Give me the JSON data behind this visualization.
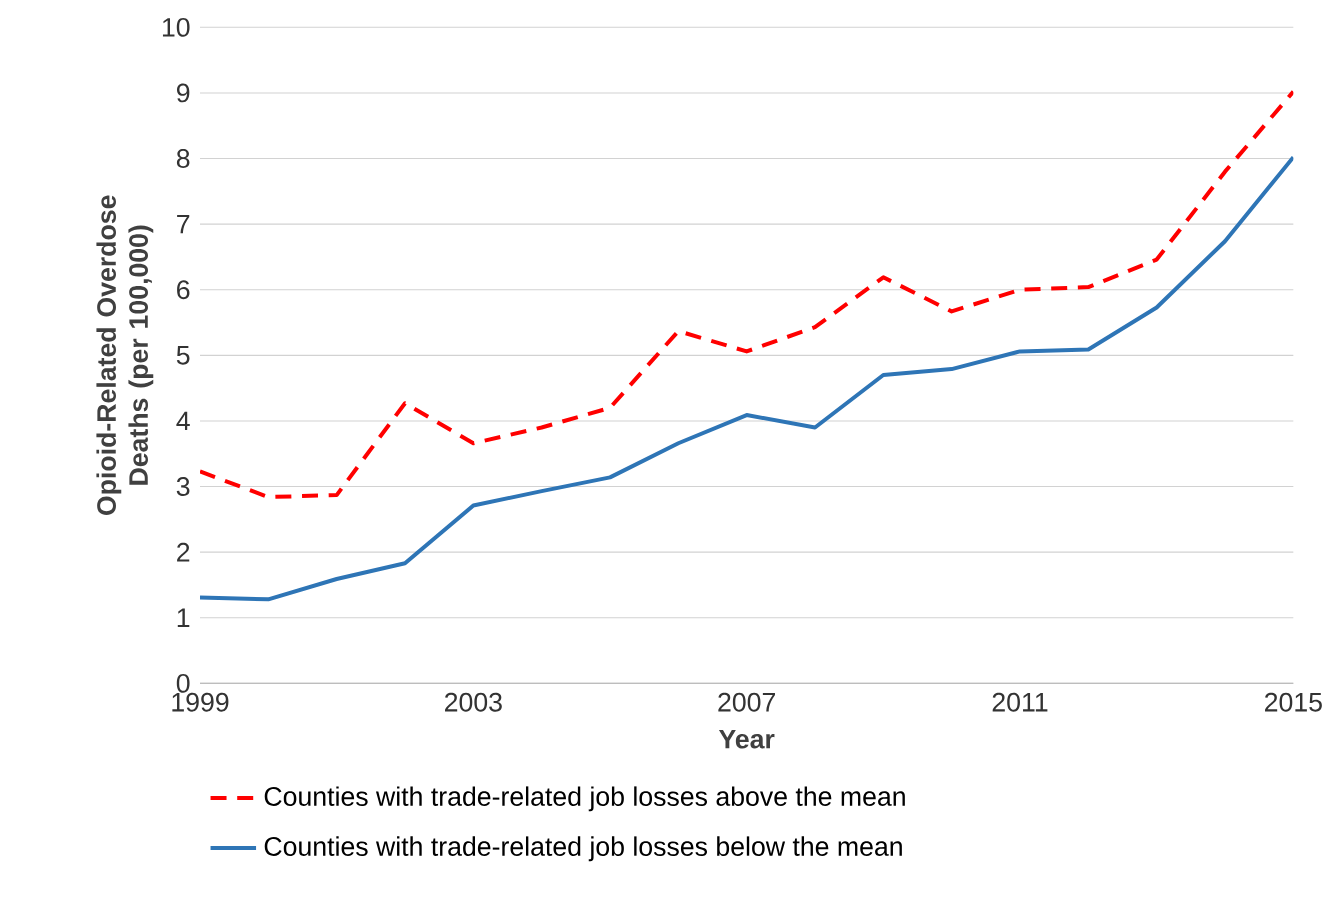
{
  "chart_data": {
    "type": "line",
    "xlabel": "Year",
    "ylabel": "Opioid-Related Overdose Deaths (per 100,000)",
    "x": [
      1999,
      2000,
      2001,
      2002,
      2003,
      2004,
      2005,
      2006,
      2007,
      2008,
      2009,
      2010,
      2011,
      2012,
      2013,
      2014,
      2015
    ],
    "series": [
      {
        "name": "Counties with trade-related job losses above the mean",
        "color": "#ff0000",
        "line_style": "dashed",
        "values": [
          3.23,
          2.84,
          2.87,
          4.27,
          3.66,
          3.9,
          4.2,
          5.37,
          5.06,
          5.43,
          6.19,
          5.67,
          6.0,
          6.04,
          6.46,
          7.8,
          9.02
        ]
      },
      {
        "name": "Counties with trade-related job losses below the mean",
        "color": "#2e75b6",
        "line_style": "solid",
        "values": [
          1.31,
          1.28,
          1.59,
          1.83,
          2.71,
          2.93,
          3.14,
          3.66,
          4.09,
          3.9,
          4.7,
          4.79,
          5.06,
          5.09,
          5.73,
          6.74,
          8.02
        ]
      }
    ],
    "xlim": [
      1999,
      2015
    ],
    "xticks": [
      1999,
      2003,
      2007,
      2011,
      2015
    ],
    "ylim": [
      0,
      10
    ],
    "yticks": [
      0,
      1,
      2,
      3,
      4,
      5,
      6,
      7,
      8,
      9,
      10
    ],
    "grid": "y",
    "legend": "bottom"
  }
}
